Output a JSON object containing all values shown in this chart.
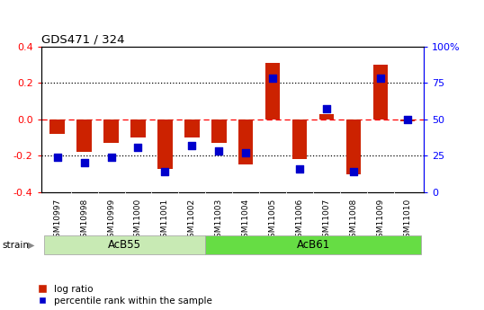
{
  "title": "GDS471 / 324",
  "samples": [
    "GSM10997",
    "GSM10998",
    "GSM10999",
    "GSM11000",
    "GSM11001",
    "GSM11002",
    "GSM11003",
    "GSM11004",
    "GSM11005",
    "GSM11006",
    "GSM11007",
    "GSM11008",
    "GSM11009",
    "GSM11010"
  ],
  "log_ratio": [
    -0.08,
    -0.18,
    -0.13,
    -0.1,
    -0.27,
    -0.1,
    -0.13,
    -0.25,
    0.31,
    -0.22,
    0.03,
    -0.3,
    0.3,
    -0.01
  ],
  "percentile": [
    24,
    20,
    24,
    31,
    14,
    32,
    28,
    27,
    78,
    16,
    57,
    14,
    78,
    50
  ],
  "ylim_left": [
    -0.4,
    0.4
  ],
  "ylim_right": [
    0,
    100
  ],
  "yticks_left": [
    -0.4,
    -0.2,
    0.0,
    0.2,
    0.4
  ],
  "yticks_right": [
    0,
    25,
    50,
    75,
    100
  ],
  "ytick_labels_right": [
    "0",
    "25",
    "50",
    "75",
    "100%"
  ],
  "bar_color": "#cc2200",
  "dot_color": "#0000cc",
  "group1_label": "AcB55",
  "group1_indices": [
    0,
    5
  ],
  "group2_label": "AcB61",
  "group2_indices": [
    6,
    13
  ],
  "group1_color": "#c8eab4",
  "group2_color": "#66dd44",
  "strain_label": "strain",
  "legend_items": [
    "log ratio",
    "percentile rank within the sample"
  ],
  "bg_color": "#ffffff",
  "xtick_bg": "#d0d0d0",
  "bar_width": 0.55,
  "dot_size": 40
}
